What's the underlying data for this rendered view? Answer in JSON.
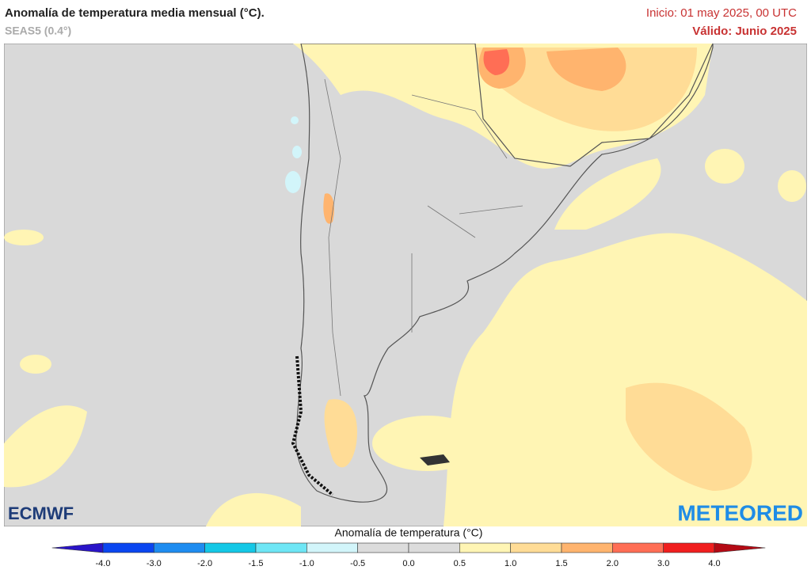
{
  "header": {
    "title": "Anomalía de temperatura media mensual (°C).",
    "subtitle": "SEAS5 (0.4°)",
    "init": "Inicio: 01 may 2025, 00 UTC",
    "valid": "Válido: Junio 2025"
  },
  "logos": {
    "left": "ECMWF",
    "right": "METEORED"
  },
  "colorbar": {
    "title": "Anomalía de temperatura (°C)",
    "labels": [
      "-4.0",
      "-3.0",
      "-2.0",
      "-1.5",
      "-1.0",
      "-0.5",
      "0.0",
      "0.5",
      "1.0",
      "1.5",
      "2.0",
      "3.0",
      "4.0"
    ],
    "colors": [
      "#2a14c8",
      "#0a46f0",
      "#1e8cf0",
      "#14c8e6",
      "#6ee6f5",
      "#d2f5fa",
      "#dcdcdc",
      "#dcdcdc",
      "#fff5b4",
      "#ffdc96",
      "#ffb46e",
      "#ff6e55",
      "#f01e1e",
      "#b40a14"
    ]
  }
}
